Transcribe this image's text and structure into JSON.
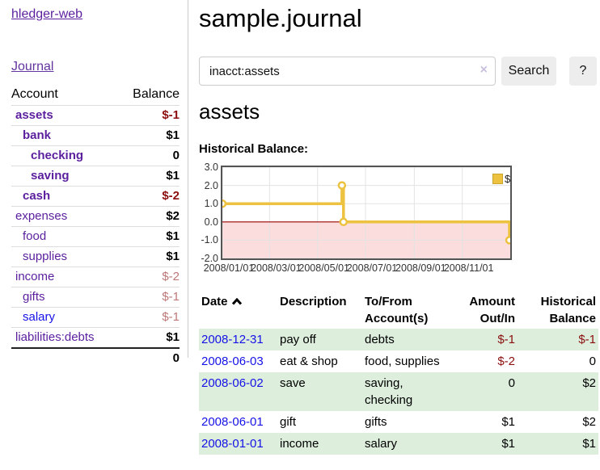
{
  "app": {
    "brand": "hledger-web",
    "nav_journal": "Journal"
  },
  "sidebar": {
    "header": {
      "account": "Account",
      "balance": "Balance"
    },
    "accounts": [
      {
        "name": "assets",
        "balance": "$-1"
      },
      {
        "name": "bank",
        "balance": "$1"
      },
      {
        "name": "checking",
        "balance": "0"
      },
      {
        "name": "saving",
        "balance": "$1"
      },
      {
        "name": "cash",
        "balance": "$-2"
      },
      {
        "name": "expenses",
        "balance": "$2"
      },
      {
        "name": "food",
        "balance": "$1"
      },
      {
        "name": "supplies",
        "balance": "$1"
      },
      {
        "name": "income",
        "balance": "$-2"
      },
      {
        "name": "gifts",
        "balance": "$-1"
      },
      {
        "name": "salary",
        "balance": "$-1"
      },
      {
        "name": "liabilities:debts",
        "balance": "$1"
      }
    ],
    "total": "0"
  },
  "header": {
    "title": "sample.journal"
  },
  "search": {
    "query": "inacct:assets",
    "clear_icon": "×",
    "search_label": "Search",
    "help_label": "?"
  },
  "account_page": {
    "title": "assets",
    "chart_label": "Historical Balance:"
  },
  "chart_data": {
    "type": "line",
    "title": "Historical Balance",
    "step": true,
    "x_range": [
      "2008-01-01",
      "2009-01-01"
    ],
    "ylim": [
      -2,
      3
    ],
    "y_ticks": [
      {
        "v": 3,
        "label": "3.0"
      },
      {
        "v": 2,
        "label": "2.0"
      },
      {
        "v": 1,
        "label": "1.0"
      },
      {
        "v": 0,
        "label": "0.0"
      },
      {
        "v": -1,
        "label": "-1.0"
      },
      {
        "v": -2,
        "label": "-2.0"
      }
    ],
    "x_ticks": [
      {
        "date": "2008-01-01",
        "label": "2008/01/01"
      },
      {
        "date": "2008-03-01",
        "label": "2008/03/01"
      },
      {
        "date": "2008-05-01",
        "label": "2008/05/01"
      },
      {
        "date": "2008-07-01",
        "label": "2008/07/01"
      },
      {
        "date": "2008-09-01",
        "label": "2008/09/01"
      },
      {
        "date": "2008-11-01",
        "label": "2008/11/01"
      }
    ],
    "series": [
      {
        "name": "$",
        "color": "#edc240",
        "points": [
          [
            "2008-01-01",
            1
          ],
          [
            "2008-06-01",
            2
          ],
          [
            "2008-06-03",
            0
          ],
          [
            "2008-12-31",
            -1
          ]
        ]
      }
    ],
    "grid": true,
    "grid_color": "#e3e3e3",
    "zero_line_color": "#990000",
    "negative_region_color": "#fbdddd",
    "legend": {
      "position": "top-right"
    }
  },
  "register": {
    "columns": {
      "date": "Date",
      "description": "Description",
      "accounts": "To/From Account(s)",
      "amount": "Amount Out/In",
      "balance": "Historical Balance"
    },
    "rows": [
      {
        "date": "2008-12-31",
        "description": "pay off",
        "accounts": "debts",
        "amount": "$-1",
        "balance": "$-1"
      },
      {
        "date": "2008-06-03",
        "description": "eat & shop",
        "accounts": "food, supplies",
        "amount": "$-2",
        "balance": "0"
      },
      {
        "date": "2008-06-02",
        "description": "save",
        "accounts": "saving, checking",
        "amount": "0",
        "balance": "$2"
      },
      {
        "date": "2008-06-01",
        "description": "gift",
        "accounts": "gifts",
        "amount": "$1",
        "balance": "$2"
      },
      {
        "date": "2008-01-01",
        "description": "income",
        "accounts": "salary",
        "amount": "$1",
        "balance": "$1"
      }
    ]
  }
}
